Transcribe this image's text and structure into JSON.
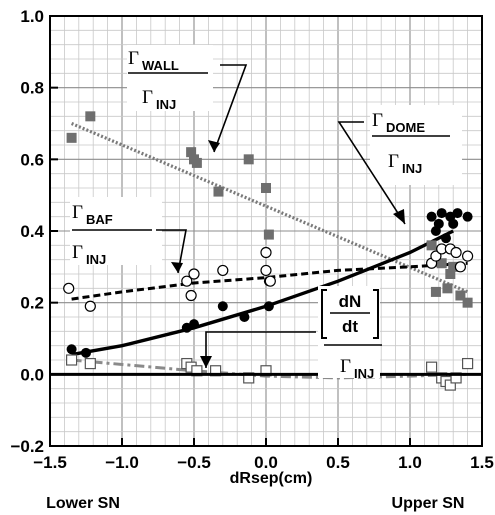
{
  "chart_data": {
    "type": "scatter",
    "title": "",
    "xlabel": "dRsep(cm)",
    "ylabel": "",
    "xlim": [
      -1.5,
      1.5
    ],
    "ylim": [
      -0.2,
      1.0
    ],
    "x_ticks": [
      "−1.5",
      "−1.0",
      "−0.5",
      "0.0",
      "0.5",
      "1.0",
      "1.5"
    ],
    "y_ticks": [
      "−0.2",
      "0.0",
      "0.2",
      "0.4",
      "0.6",
      "0.8",
      "1.0"
    ],
    "x_tick_values": [
      -1.5,
      -1.0,
      -0.5,
      0.0,
      0.5,
      1.0,
      1.5
    ],
    "y_tick_values": [
      -0.2,
      0.0,
      0.2,
      0.4,
      0.6,
      0.8,
      1.0
    ],
    "grid": true,
    "below_axis_labels": {
      "left": "Lower SN",
      "right": "Upper SN"
    },
    "series": [
      {
        "name": "ΓWALL/ΓINJ",
        "marker": "filled-square",
        "color": "#6e6e6e",
        "x": [
          -1.35,
          -1.22,
          -0.52,
          -0.5,
          -0.48,
          -0.33,
          -0.12,
          0.0,
          0.02,
          1.15,
          1.18,
          1.22,
          1.26,
          1.28,
          1.3,
          1.35,
          1.4
        ],
        "y": [
          0.66,
          0.72,
          0.62,
          0.6,
          0.59,
          0.51,
          0.6,
          0.52,
          0.39,
          0.36,
          0.23,
          0.31,
          0.24,
          0.28,
          0.3,
          0.22,
          0.2
        ],
        "fit": {
          "style": "dotted-thick",
          "color": "#7a7a7a",
          "x": [
            -1.35,
            1.4
          ],
          "y": [
            0.7,
            0.23
          ]
        }
      },
      {
        "name": "ΓDOME/ΓINJ",
        "marker": "filled-circle",
        "color": "#000000",
        "x": [
          -1.35,
          -1.25,
          -0.55,
          -0.5,
          -0.3,
          -0.15,
          0.02,
          0.02,
          1.15,
          1.18,
          1.2,
          1.22,
          1.25,
          1.28,
          1.3,
          1.33,
          1.4
        ],
        "y": [
          0.07,
          0.06,
          0.13,
          0.14,
          0.19,
          0.16,
          0.26,
          0.19,
          0.44,
          0.4,
          0.42,
          0.45,
          0.38,
          0.44,
          0.42,
          0.45,
          0.44
        ],
        "fit": {
          "style": "solid-thick",
          "color": "#000000",
          "x": [
            -1.35,
            -1.0,
            -0.5,
            0.0,
            0.5,
            1.0,
            1.3
          ],
          "y": [
            0.055,
            0.08,
            0.13,
            0.19,
            0.26,
            0.34,
            0.4
          ]
        }
      },
      {
        "name": "ΓBAF/ΓINJ",
        "marker": "open-circle",
        "color": "#000000",
        "x": [
          -1.37,
          -1.22,
          -0.55,
          -0.52,
          -0.5,
          -0.3,
          0.0,
          0.0,
          0.03,
          1.15,
          1.18,
          1.22,
          1.28,
          1.32,
          1.35,
          1.4
        ],
        "y": [
          0.24,
          0.19,
          0.26,
          0.22,
          0.28,
          0.29,
          0.34,
          0.29,
          0.26,
          0.31,
          0.33,
          0.35,
          0.35,
          0.34,
          0.3,
          0.33
        ],
        "fit": {
          "style": "dashed-thick",
          "color": "#000000",
          "x": [
            -1.35,
            -1.0,
            -0.5,
            0.0,
            0.5,
            1.0,
            1.4
          ],
          "y": [
            0.21,
            0.23,
            0.255,
            0.27,
            0.29,
            0.3,
            0.31
          ]
        }
      },
      {
        "name": "[dN/dt]/ΓINJ",
        "marker": "open-square",
        "color": "#000000",
        "x": [
          -1.35,
          -1.22,
          -0.55,
          -0.52,
          -0.48,
          -0.35,
          -0.12,
          0.0,
          1.15,
          1.22,
          1.25,
          1.28,
          1.32,
          1.4
        ],
        "y": [
          0.04,
          0.03,
          0.03,
          0.02,
          0.01,
          0.01,
          -0.01,
          0.01,
          0.02,
          -0.01,
          -0.02,
          -0.03,
          -0.01,
          0.03
        ],
        "fit": {
          "style": "dash-dot-thick",
          "color": "#8a8a8a",
          "x": [
            -1.35,
            -0.5,
            0.0,
            0.5,
            1.0,
            1.4
          ],
          "y": [
            0.04,
            0.01,
            -0.005,
            -0.01,
            -0.005,
            0.0
          ]
        }
      }
    ],
    "annotations": [
      {
        "id": "wall",
        "numerator": "Γ",
        "numerator_sub": "WALL",
        "denominator": "Γ",
        "denominator_sub": "INJ"
      },
      {
        "id": "dome",
        "numerator": "Γ",
        "numerator_sub": "DOME",
        "denominator": "Γ",
        "denominator_sub": "INJ"
      },
      {
        "id": "baf",
        "numerator": "Γ",
        "numerator_sub": "BAF",
        "denominator": "Γ",
        "denominator_sub": "INJ"
      },
      {
        "id": "dndt",
        "numerator": "dN",
        "denominator": "dt",
        "under": "Γ",
        "under_sub": "INJ"
      }
    ]
  }
}
